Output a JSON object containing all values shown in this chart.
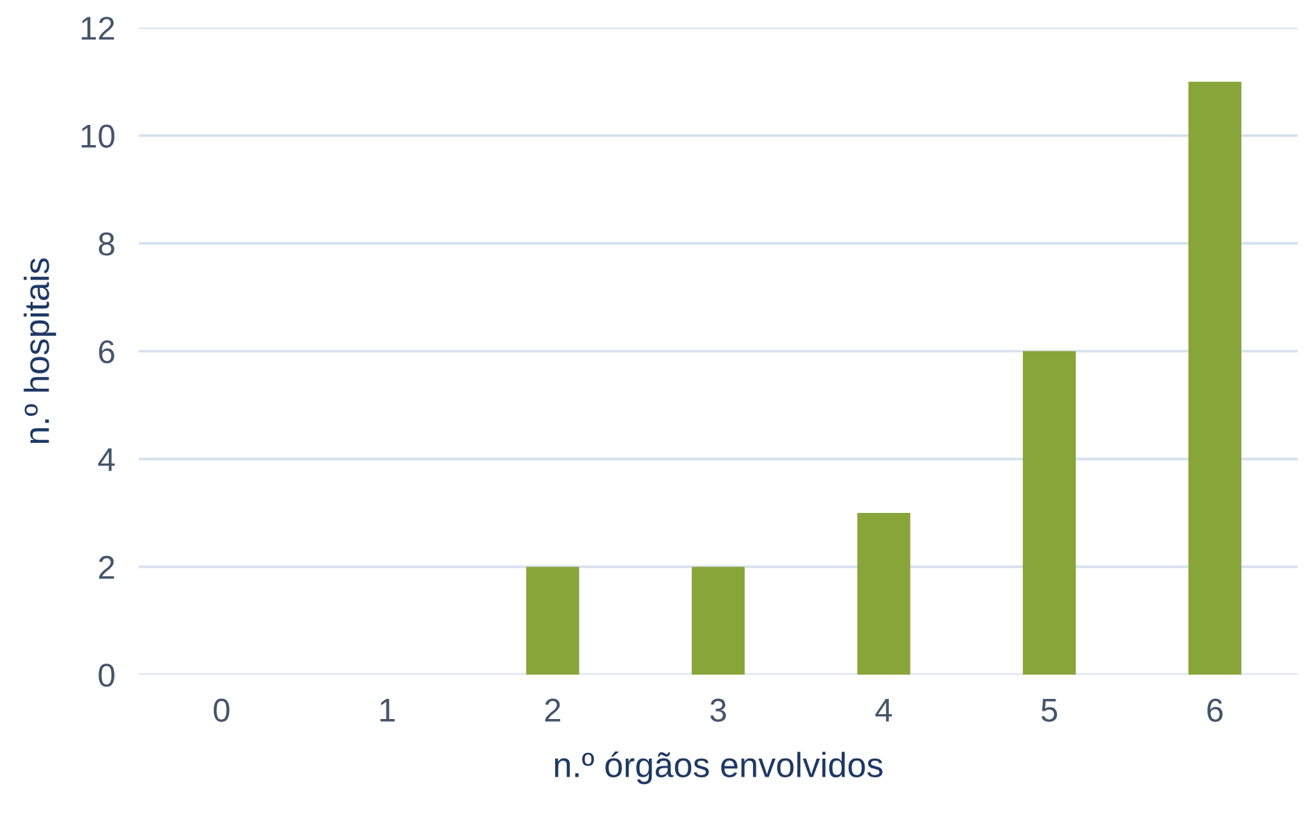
{
  "chart_data": {
    "type": "bar",
    "xlabel": "n.º órgãos envolvidos",
    "ylabel": "n.º hospitais",
    "categories": [
      "0",
      "1",
      "2",
      "3",
      "4",
      "5",
      "6"
    ],
    "values": [
      0,
      0,
      2,
      2,
      3,
      6,
      11
    ],
    "color": "#88a53a",
    "ylim": [
      0,
      12
    ],
    "yticks": [
      0,
      2,
      4,
      6,
      8,
      10,
      12
    ],
    "grid": "y",
    "legend": false
  }
}
